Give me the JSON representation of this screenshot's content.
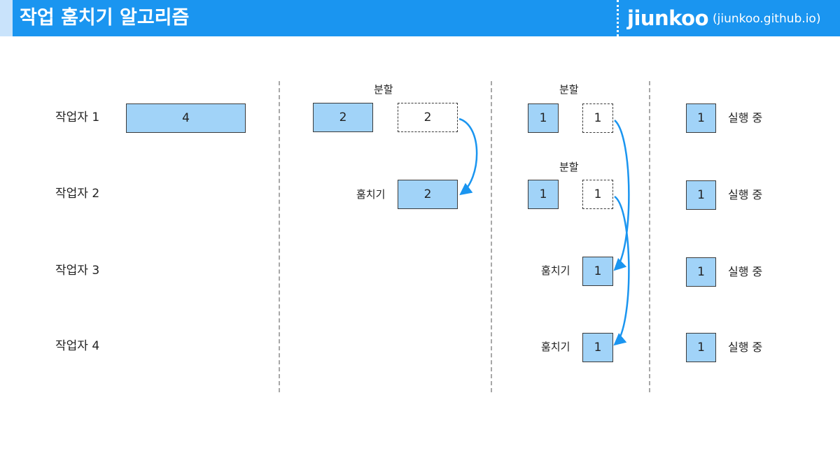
{
  "header": {
    "title": "작업 훔치기 알고리즘",
    "brand": "jiunkoo",
    "url": "(jiunkoo.github.io)"
  },
  "colors": {
    "header": "#1a95f0",
    "accent": "#c9e3fb",
    "task": "#a1d3f8",
    "arrow": "#1a95f0"
  },
  "workers": [
    "작업자 1",
    "작업자 2",
    "작업자 3",
    "작업자 4"
  ],
  "stage1": {
    "task": "4"
  },
  "stage2": {
    "split_label": "분할",
    "kept": "2",
    "split_off": "2",
    "steal_label": "훔치기",
    "stolen": "2"
  },
  "stage3": {
    "split_label_1": "분할",
    "split_label_2": "분할",
    "w1_kept": "1",
    "w1_split_off": "1",
    "w2_kept": "1",
    "w2_split_off": "1",
    "w3_steal_label": "훔치기",
    "w3_stolen": "1",
    "w4_steal_label": "훔치기",
    "w4_stolen": "1"
  },
  "stage4": {
    "tasks": [
      "1",
      "1",
      "1",
      "1"
    ],
    "status": [
      "실행 중",
      "실행 중",
      "실행 중",
      "실행 중"
    ]
  }
}
